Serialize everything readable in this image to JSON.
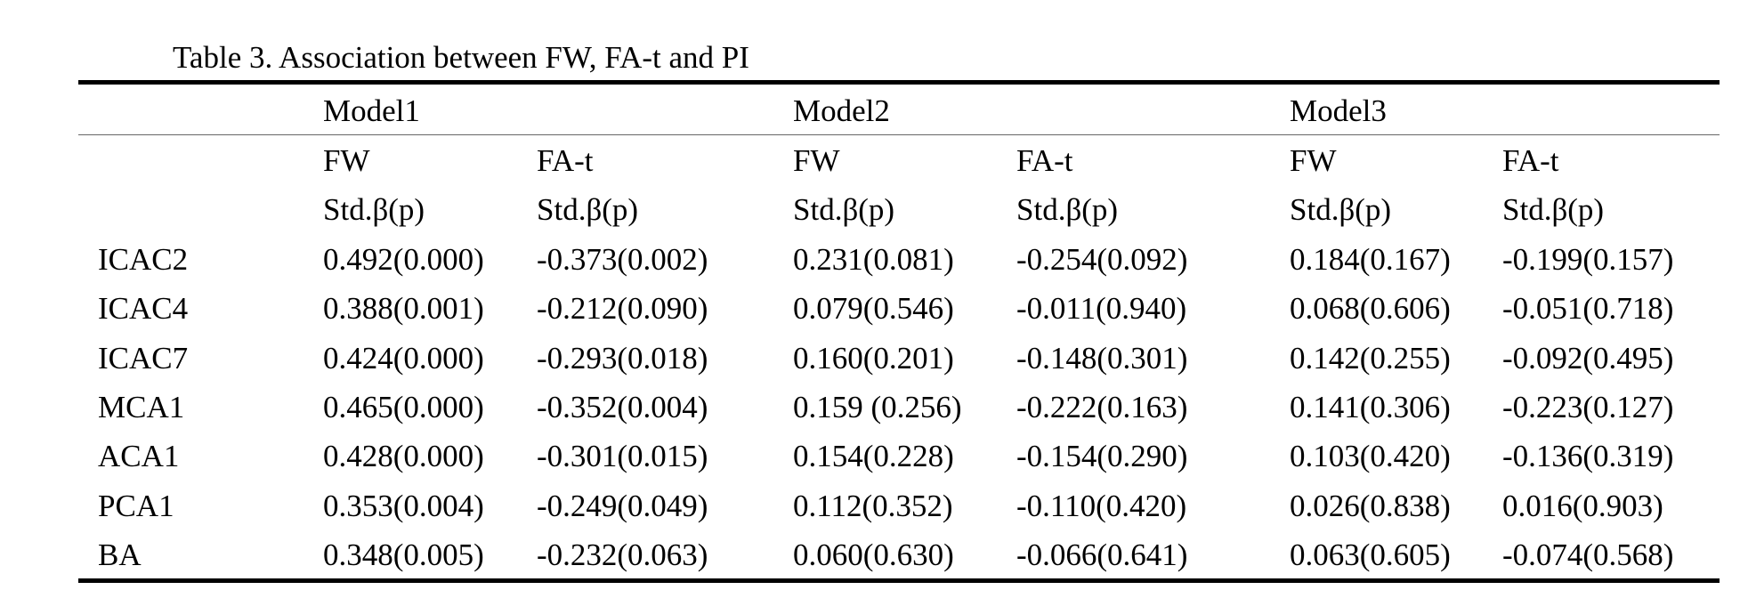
{
  "title": "Table 3. Association between FW, FA-t and PI",
  "header": {
    "models": [
      "Model1",
      "Model2",
      "Model3"
    ],
    "variables": [
      "FW",
      "FA-t",
      "FW",
      "FA-t",
      "FW",
      "FA-t"
    ],
    "stats": [
      "Std.β(p)",
      "Std.β(p)",
      "Std.β(p)",
      "Std.β(p)",
      "Std.β(p)",
      "Std.β(p)"
    ]
  },
  "rows": [
    {
      "label": "ICAC2",
      "values": [
        "0.492(0.000)",
        "-0.373(0.002)",
        "0.231(0.081)",
        "-0.254(0.092)",
        "0.184(0.167)",
        "-0.199(0.157)"
      ]
    },
    {
      "label": "ICAC4",
      "values": [
        "0.388(0.001)",
        "-0.212(0.090)",
        "0.079(0.546)",
        "-0.011(0.940)",
        "0.068(0.606)",
        "-0.051(0.718)"
      ]
    },
    {
      "label": "ICAC7",
      "values": [
        "0.424(0.000)",
        "-0.293(0.018)",
        "0.160(0.201)",
        "-0.148(0.301)",
        "0.142(0.255)",
        "-0.092(0.495)"
      ]
    },
    {
      "label": "MCA1",
      "values": [
        "0.465(0.000)",
        "-0.352(0.004)",
        "0.159 (0.256)",
        "-0.222(0.163)",
        "0.141(0.306)",
        "-0.223(0.127)"
      ]
    },
    {
      "label": "ACA1",
      "values": [
        "0.428(0.000)",
        "-0.301(0.015)",
        "0.154(0.228)",
        "-0.154(0.290)",
        "0.103(0.420)",
        "-0.136(0.319)"
      ]
    },
    {
      "label": "PCA1",
      "values": [
        "0.353(0.004)",
        "-0.249(0.049)",
        "0.112(0.352)",
        "-0.110(0.420)",
        "0.026(0.838)",
        "0.016(0.903)"
      ]
    },
    {
      "label": "BA",
      "values": [
        "0.348(0.005)",
        "-0.232(0.063)",
        "0.060(0.630)",
        "-0.066(0.641)",
        "0.063(0.605)",
        "-0.074(0.568)"
      ]
    }
  ]
}
